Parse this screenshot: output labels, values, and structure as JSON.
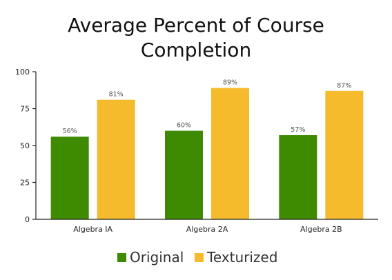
{
  "chart_data": {
    "type": "bar",
    "title_lines": [
      "Average Percent of Course",
      "Completion"
    ],
    "categories": [
      "Algebra IA",
      "Algebra 2A",
      "Algebra 2B"
    ],
    "series": [
      {
        "name": "Original",
        "color": "#3e8a00",
        "values": [
          56,
          60,
          57
        ],
        "labels": [
          "56%",
          "60%",
          "57%"
        ]
      },
      {
        "name": "Texturized",
        "color": "#f6bb2d",
        "values": [
          81,
          89,
          87
        ],
        "labels": [
          "81%",
          "89%",
          "87%"
        ]
      }
    ],
    "ylim": [
      0,
      100
    ],
    "yticks": [
      0,
      25,
      50,
      75,
      100
    ],
    "grid": false,
    "legend_position": "bottom-center"
  }
}
